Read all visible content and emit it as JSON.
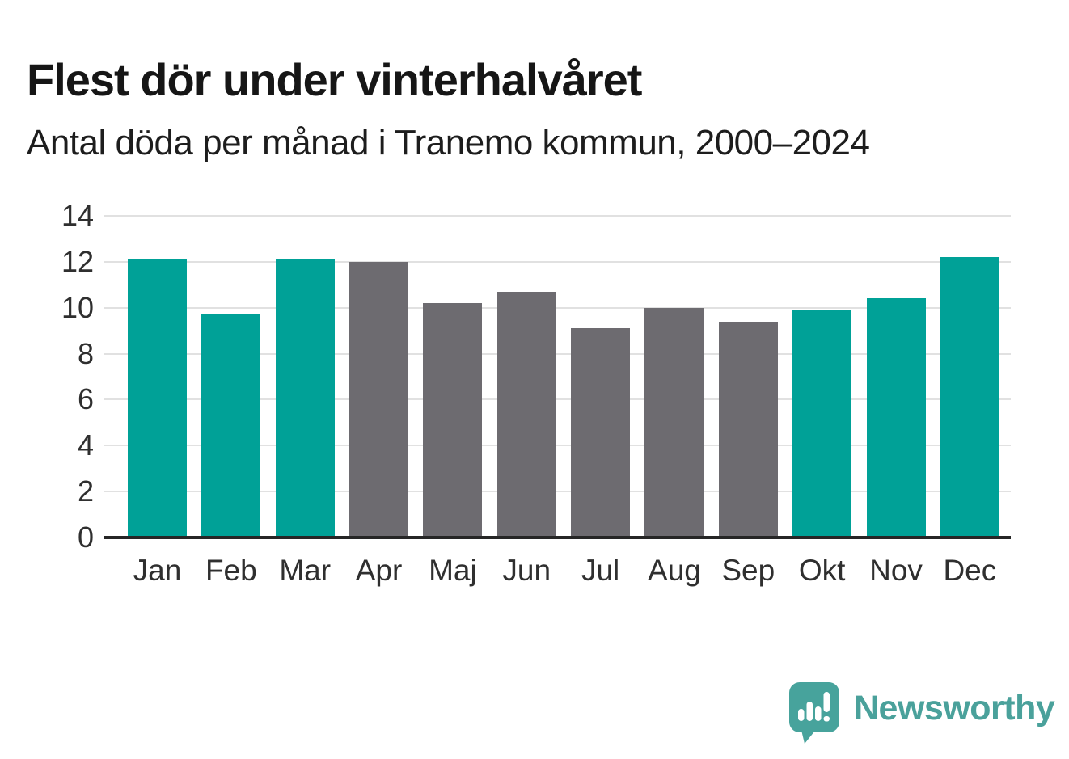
{
  "title": "Flest dör under vinterhalvåret",
  "subtitle": "Antal döda per månad i Tranemo kommun, 2000–2024",
  "chart_data": {
    "type": "bar",
    "title": "Flest dör under vinterhalvåret",
    "subtitle": "Antal döda per månad i Tranemo kommun, 2000–2024",
    "categories": [
      "Jan",
      "Feb",
      "Mar",
      "Apr",
      "Maj",
      "Jun",
      "Jul",
      "Aug",
      "Sep",
      "Okt",
      "Nov",
      "Dec"
    ],
    "values": [
      12.1,
      9.7,
      12.1,
      12.0,
      10.2,
      10.7,
      9.1,
      10.0,
      9.4,
      9.9,
      10.4,
      12.2
    ],
    "bar_color_keys": [
      "winter",
      "winter",
      "winter",
      "summer",
      "summer",
      "summer",
      "summer",
      "summer",
      "summer",
      "winter",
      "winter",
      "winter"
    ],
    "palette": {
      "winter": "#00a197",
      "summer": "#6d6b70"
    },
    "xlabel": "",
    "ylabel": "",
    "ylim": [
      0,
      14
    ],
    "yticks": [
      0,
      2,
      4,
      6,
      8,
      10,
      12,
      14
    ],
    "grid": true,
    "legend": false,
    "gridline_color": "#e1e1e1",
    "axis_color": "#262626"
  },
  "branding": {
    "logo_text": "Newsworthy",
    "logo_bubble_color": "#47a39c",
    "logo_text_color": "#4aa19b",
    "logo_mark_color": "#ffffff"
  }
}
